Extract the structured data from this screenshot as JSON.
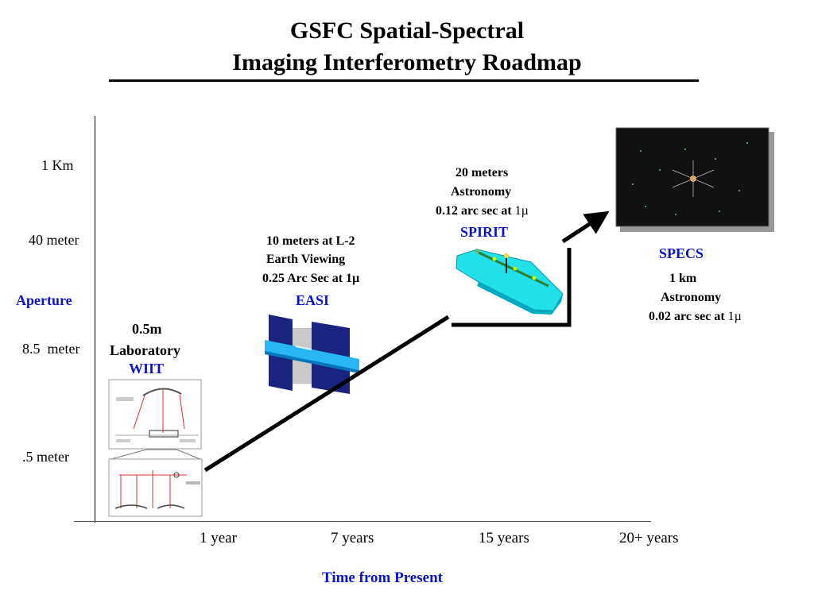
{
  "title": {
    "line1": "GSFC Spatial-Spectral",
    "line2": "Imaging Interferometry Roadmap"
  },
  "y_axis": {
    "label": "Aperture",
    "ticks": [
      "1 Km",
      "40 meter",
      "8.5  meter",
      ".5 meter"
    ]
  },
  "x_axis": {
    "label": "Time from Present",
    "ticks": [
      "1 year",
      "7 years",
      "15 years",
      "20+ years"
    ]
  },
  "missions": {
    "wiit": {
      "name": "WIIT",
      "line1": "0.5m",
      "line2": "Laboratory"
    },
    "easi": {
      "name": "EASI",
      "line1": "10 meters at L-2",
      "line2": "Earth Viewing",
      "line3": "0.25 Arc Sec at 1µ"
    },
    "spirit": {
      "name": "SPIRIT",
      "line1": "20 meters",
      "line2": "Astronomy",
      "line3": "0.12 arc sec at",
      "line3_unit": "1µ"
    },
    "specs": {
      "name": "SPECS",
      "line1": "1 km",
      "line2": "Astronomy",
      "line3": "0.02 arc sec at",
      "line3_unit": "1µ"
    }
  },
  "colors": {
    "mission_label": "#0a14c8",
    "roadmap_line": "#000000",
    "spirit_body": "#22e0e8",
    "easi_panel": "#1a237e",
    "easi_bar": "#29b6f6"
  }
}
